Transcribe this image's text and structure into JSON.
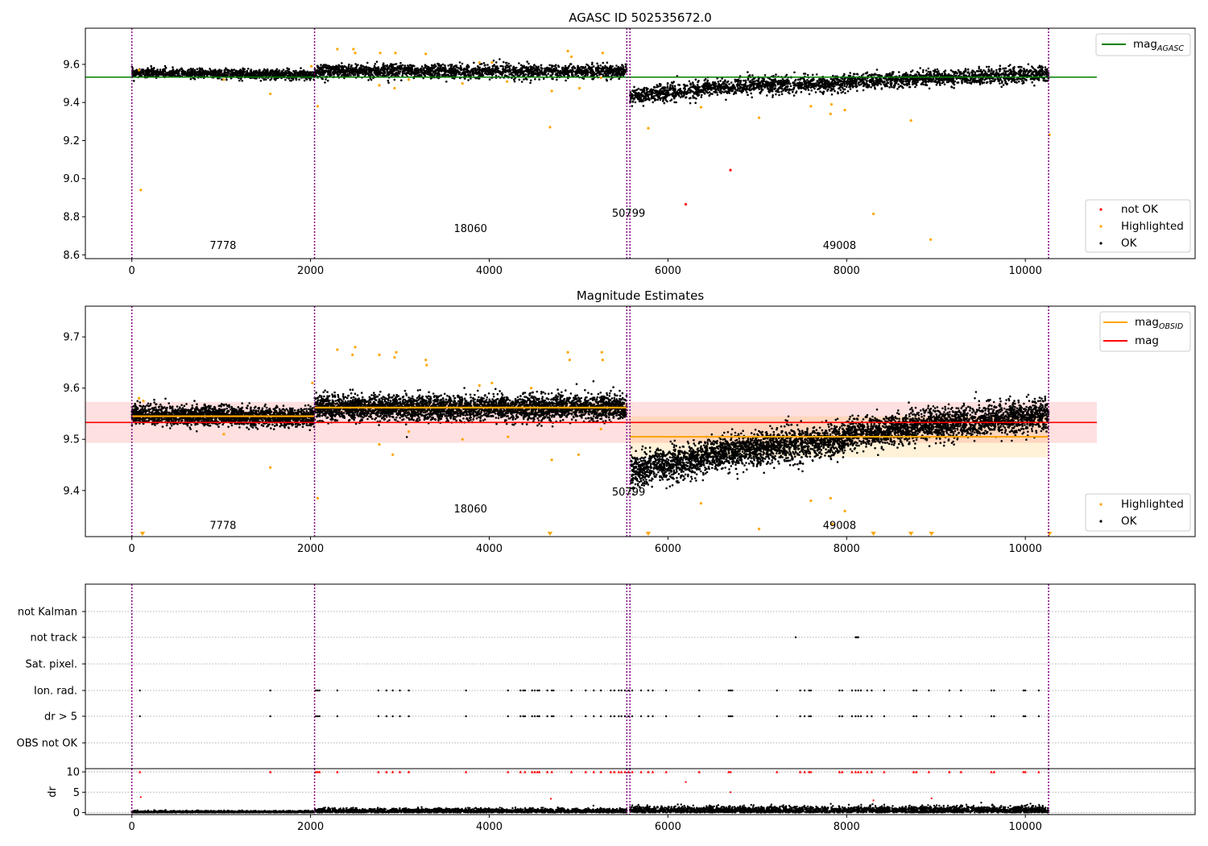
{
  "figure": {
    "ok_color": "#000000",
    "highlight_color": "#ffa500",
    "notok_color": "#ff0000",
    "boundary_color": "#800080",
    "agasc_line_color": "#008000",
    "obsid_line_color": "#ffa500",
    "mag_line_color": "#ff0000",
    "boundaries": [
      0,
      2045,
      5540,
      5575,
      10260
    ]
  },
  "chart_data": [
    {
      "type": "scatter",
      "title": "AGASC ID 502535672.0",
      "xlim": [
        -520,
        11900
      ],
      "ylim": [
        8.58,
        9.79
      ],
      "x_ticks": [
        "0",
        "2000",
        "4000",
        "6000",
        "8000",
        "10000"
      ],
      "y_ticks": [
        "8.6",
        "8.8",
        "9.0",
        "9.2",
        "9.4",
        "9.6"
      ],
      "x_tick_values": [
        0,
        2000,
        4000,
        6000,
        8000,
        10000
      ],
      "y_tick_values": [
        8.6,
        8.8,
        9.0,
        9.2,
        9.4,
        9.6
      ],
      "obsid_labels": [
        {
          "text": "7778",
          "x": 1020,
          "y": 8.63
        },
        {
          "text": "18060",
          "x": 3790,
          "y": 8.72
        },
        {
          "text": "50799",
          "x": 5560,
          "y": 8.8
        },
        {
          "text": "49008",
          "x": 7920,
          "y": 8.63
        }
      ],
      "agasc_mag": {
        "value": 9.533,
        "x_range": [
          -520,
          10800
        ]
      },
      "ok_segments": [
        {
          "x": [
            0,
            2045
          ],
          "trend": [
            9.555,
            9.545
          ],
          "spread": 0.012
        },
        {
          "x": [
            2045,
            5540
          ],
          "trend": [
            9.565,
            9.562
          ],
          "spread": 0.018
        },
        {
          "x": [
            5575,
            6400
          ],
          "trend": [
            9.43,
            9.47
          ],
          "spread": 0.022
        },
        {
          "x": [
            6400,
            8000
          ],
          "trend": [
            9.48,
            9.5
          ],
          "spread": 0.022
        },
        {
          "x": [
            8000,
            10260
          ],
          "trend": [
            9.51,
            9.55
          ],
          "spread": 0.02
        }
      ],
      "highlighted_points": [
        [
          100,
          8.94
        ],
        [
          80,
          9.57
        ],
        [
          1550,
          9.445
        ],
        [
          1030,
          9.52
        ],
        [
          2080,
          9.38
        ],
        [
          2010,
          9.59
        ],
        [
          2300,
          9.68
        ],
        [
          2480,
          9.68
        ],
        [
          2500,
          9.66
        ],
        [
          2780,
          9.66
        ],
        [
          2950,
          9.66
        ],
        [
          3290,
          9.655
        ],
        [
          3100,
          9.52
        ],
        [
          2770,
          9.49
        ],
        [
          2940,
          9.475
        ],
        [
          3700,
          9.5
        ],
        [
          4200,
          9.51
        ],
        [
          4030,
          9.61
        ],
        [
          4700,
          9.46
        ],
        [
          4680,
          9.27
        ],
        [
          4880,
          9.67
        ],
        [
          4920,
          9.64
        ],
        [
          5010,
          9.475
        ],
        [
          5270,
          9.66
        ],
        [
          5250,
          9.53
        ],
        [
          5780,
          9.265
        ],
        [
          6370,
          9.375
        ],
        [
          7020,
          9.32
        ],
        [
          7600,
          9.38
        ],
        [
          7820,
          9.34
        ],
        [
          7830,
          9.39
        ],
        [
          7980,
          9.36
        ],
        [
          8300,
          8.815
        ],
        [
          8720,
          9.305
        ],
        [
          8940,
          8.68
        ],
        [
          10270,
          9.23
        ],
        [
          3890,
          9.61
        ]
      ],
      "not_ok_points": [
        [
          6700,
          9.045
        ],
        [
          6200,
          8.865
        ]
      ],
      "legends": {
        "line": [
          {
            "label": "mag",
            "sub": "AGASC"
          }
        ],
        "markers": [
          {
            "label": "not OK"
          },
          {
            "label": "Highlighted"
          },
          {
            "label": "OK"
          }
        ]
      }
    },
    {
      "type": "scatter",
      "title": "Magnitude Estimates",
      "xlim": [
        -520,
        11900
      ],
      "ylim": [
        9.31,
        9.76
      ],
      "x_ticks": [
        "0",
        "2000",
        "4000",
        "6000",
        "8000",
        "10000"
      ],
      "y_ticks": [
        "9.4",
        "9.5",
        "9.6",
        "9.7"
      ],
      "x_tick_values": [
        0,
        2000,
        4000,
        6000,
        8000,
        10000
      ],
      "y_tick_values": [
        9.4,
        9.5,
        9.6,
        9.7
      ],
      "obsid_labels": [
        {
          "text": "7778",
          "x": 1020,
          "y": 9.325
        },
        {
          "text": "18060",
          "x": 3790,
          "y": 9.357
        },
        {
          "text": "50799",
          "x": 5560,
          "y": 9.39
        },
        {
          "text": "49008",
          "x": 7920,
          "y": 9.325
        }
      ],
      "mag": {
        "value": 9.533,
        "band": [
          9.493,
          9.573
        ],
        "x_range": [
          -520,
          10800
        ]
      },
      "obsid_mags": [
        {
          "x": [
            0,
            2045
          ],
          "value": 9.545,
          "band": [
            9.535,
            9.555
          ]
        },
        {
          "x": [
            2045,
            5540
          ],
          "value": 9.562,
          "band": [
            9.552,
            9.572
          ]
        },
        {
          "x": [
            5575,
            10260
          ],
          "value": 9.505,
          "band": [
            9.465,
            9.545
          ]
        }
      ],
      "ok_segments": [
        {
          "x": [
            0,
            2045
          ],
          "trend": [
            9.548,
            9.543
          ],
          "spread": 0.009
        },
        {
          "x": [
            2045,
            5540
          ],
          "trend": [
            9.562,
            9.562
          ],
          "spread": 0.012
        },
        {
          "x": [
            5575,
            6400
          ],
          "trend": [
            9.44,
            9.46
          ],
          "spread": 0.016
        },
        {
          "x": [
            6400,
            8000
          ],
          "trend": [
            9.47,
            9.5
          ],
          "spread": 0.016
        },
        {
          "x": [
            8000,
            10260
          ],
          "trend": [
            9.51,
            9.55
          ],
          "spread": 0.015
        }
      ],
      "highlighted_points": [
        [
          80,
          9.58
        ],
        [
          130,
          9.575
        ],
        [
          1030,
          9.51
        ],
        [
          1550,
          9.445
        ],
        [
          2080,
          9.385
        ],
        [
          2020,
          9.61
        ],
        [
          2300,
          9.675
        ],
        [
          2470,
          9.665
        ],
        [
          2500,
          9.68
        ],
        [
          2770,
          9.665
        ],
        [
          2940,
          9.66
        ],
        [
          2960,
          9.67
        ],
        [
          3290,
          9.655
        ],
        [
          3300,
          9.645
        ],
        [
          2770,
          9.49
        ],
        [
          2920,
          9.47
        ],
        [
          3100,
          9.515
        ],
        [
          3700,
          9.5
        ],
        [
          3890,
          9.605
        ],
        [
          4030,
          9.61
        ],
        [
          4210,
          9.505
        ],
        [
          4470,
          9.6
        ],
        [
          4700,
          9.46
        ],
        [
          4880,
          9.67
        ],
        [
          4900,
          9.655
        ],
        [
          5000,
          9.47
        ],
        [
          5260,
          9.67
        ],
        [
          5270,
          9.655
        ],
        [
          5250,
          9.52
        ],
        [
          6370,
          9.375
        ],
        [
          7020,
          9.325
        ],
        [
          7600,
          9.38
        ],
        [
          7820,
          9.385
        ],
        [
          7840,
          9.335
        ],
        [
          7980,
          9.36
        ]
      ],
      "offscale_markers": [
        120,
        4680,
        5780,
        8300,
        8720,
        8950,
        10270
      ],
      "legends": {
        "line": [
          {
            "label": "mag",
            "sub": "OBSID"
          },
          {
            "label": "mag",
            "sub": ""
          }
        ],
        "markers": [
          {
            "label": "Highlighted"
          },
          {
            "label": "OK"
          }
        ]
      }
    },
    {
      "type": "scatter",
      "title": "",
      "xlim": [
        -520,
        11900
      ],
      "category_labels": [
        "not Kalman",
        "not track",
        "Sat. pixel.",
        "Ion. rad.",
        "dr > 5",
        "OBS not OK"
      ],
      "flag_rows": {
        "not track": [
          7430,
          8100,
          8110,
          8120,
          8130
        ],
        "Ion. rad.": [
          90,
          1550,
          2060,
          2080,
          2100,
          2300,
          2760,
          2850,
          2920,
          3000,
          3100,
          3740,
          4210,
          4350,
          4380,
          4400,
          4480,
          4510,
          4540,
          4560,
          4650,
          4700,
          4720,
          4920,
          5080,
          5170,
          5250,
          5360,
          5400,
          5450,
          5480,
          5520,
          5560,
          5600,
          5700,
          5780,
          5830,
          5980,
          6350,
          6680,
          6700,
          6720,
          7220,
          7480,
          7530,
          7580,
          7600,
          7920,
          7950,
          8060,
          8100,
          8130,
          8160,
          8230,
          8280,
          8420,
          8750,
          8780,
          8920,
          9150,
          9280,
          9620,
          9650,
          9980,
          10000,
          10150
        ],
        "dr > 5": [
          90,
          1550,
          2060,
          2080,
          2100,
          2300,
          2760,
          2850,
          2920,
          3000,
          3100,
          3740,
          4210,
          4350,
          4380,
          4400,
          4480,
          4510,
          4540,
          4560,
          4650,
          4700,
          4720,
          4920,
          5080,
          5170,
          5250,
          5360,
          5400,
          5450,
          5480,
          5520,
          5560,
          5600,
          5700,
          5780,
          5830,
          5980,
          6350,
          6680,
          6700,
          6720,
          7220,
          7480,
          7530,
          7580,
          7600,
          7920,
          7950,
          8060,
          8100,
          8130,
          8160,
          8230,
          8280,
          8420,
          8750,
          8780,
          8920,
          9150,
          9280,
          9620,
          9650,
          9980,
          10000,
          10150
        ]
      }
    },
    {
      "type": "scatter",
      "title": "",
      "xlim": [
        -520,
        11900
      ],
      "ylim": [
        -0.5,
        10.8
      ],
      "ylabel": "dr",
      "x_ticks": [
        "0",
        "2000",
        "4000",
        "6000",
        "8000",
        "10000"
      ],
      "y_ticks": [
        "0",
        "5",
        "10"
      ],
      "x_tick_values": [
        0,
        2000,
        4000,
        6000,
        8000,
        10000
      ],
      "y_tick_values": [
        0,
        5,
        10
      ],
      "clipped_points": [
        90,
        1550,
        2060,
        2080,
        2100,
        2300,
        2760,
        2850,
        2920,
        3000,
        3100,
        3740,
        4210,
        4350,
        4400,
        4480,
        4510,
        4540,
        4560,
        4650,
        4700,
        4920,
        5080,
        5170,
        5250,
        5360,
        5400,
        5450,
        5480,
        5520,
        5560,
        5600,
        5700,
        5780,
        5830,
        5980,
        6350,
        6680,
        6700,
        7220,
        7480,
        7530,
        7580,
        7600,
        7920,
        7950,
        8060,
        8100,
        8130,
        8160,
        8230,
        8280,
        8420,
        8750,
        8780,
        8920,
        9150,
        9280,
        9620,
        9650,
        9980,
        10000,
        10150
      ],
      "red_points": [
        [
          100,
          3.8
        ],
        [
          4690,
          3.4
        ],
        [
          6200,
          7.5
        ],
        [
          6700,
          5.0
        ],
        [
          8300,
          3.0
        ],
        [
          8950,
          3.5
        ]
      ],
      "ok_segments": [
        {
          "x": [
            0,
            2045
          ],
          "level": 0.3
        },
        {
          "x": [
            2045,
            5540
          ],
          "level": 0.7
        },
        {
          "x": [
            5575,
            10260
          ],
          "level": 1.1
        }
      ]
    }
  ]
}
